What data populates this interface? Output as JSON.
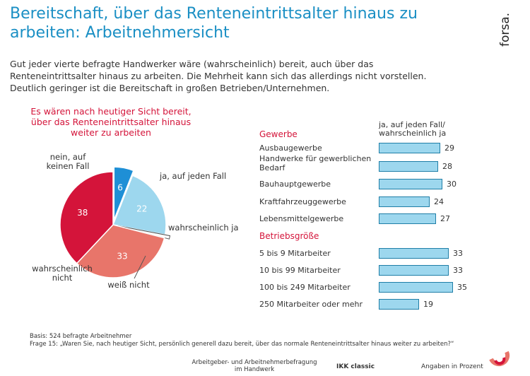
{
  "title": "Bereitschaft, über das Renteneintrittsalter hinaus zu arbeiten: Arbeitnehmersicht",
  "brand": "forsa.",
  "intro": "Gut jeder vierte befragte Handwerker wäre (wahrscheinlich) bereit, auch über das Renteneintrittsalter hinaus zu arbeiten. Die Mehrheit kann sich das allerdings nicht vorstellen. Deutlich geringer ist die Bereitschaft in großen Betrieben/Unternehmen.",
  "colors": {
    "accent_blue": "#1a8fc4",
    "red": "#d4143a",
    "salmon": "#e8756a",
    "light_blue": "#9dd7ee",
    "blue": "#1e8fd6",
    "bar_border": "#1f7ea7"
  },
  "chart_data": [
    {
      "type": "pie",
      "title": "Es wären nach heutiger Sicht bereit, über das Renteneintrittsalter hinaus weiter zu arbeiten",
      "slices": [
        {
          "label": "ja, auf jeden Fall",
          "value": 6,
          "color": "#1e8fd6"
        },
        {
          "label": "wahrscheinlich ja",
          "value": 22,
          "color": "#9dd7ee"
        },
        {
          "label": "weiß nicht",
          "value": 1,
          "color": "#ffffff"
        },
        {
          "label": "wahrscheinlich nicht",
          "value": 33,
          "color": "#e8756a"
        },
        {
          "label": "nein, auf keinen Fall",
          "value": 38,
          "color": "#d4143a"
        }
      ]
    },
    {
      "type": "bar",
      "orientation": "horizontal",
      "column_header": "ja, auf jeden Fall/ wahrscheinlich ja",
      "groups": [
        {
          "name": "Gewerbe",
          "categories": [
            "Ausbaugewerbe",
            "Handwerke für gewerblichen Bedarf",
            "Bauhauptgewerbe",
            "Kraftfahrzeuggewerbe",
            "Lebensmittelgewerbe"
          ],
          "values": [
            29,
            28,
            30,
            24,
            27
          ]
        },
        {
          "name": "Betriebsgröße",
          "categories": [
            "5 bis 9 Mitarbeiter",
            "10 bis 99 Mitarbeiter",
            "100 bis 249 Mitarbeiter",
            "250 Mitarbeiter oder mehr"
          ],
          "values": [
            33,
            33,
            35,
            19
          ]
        }
      ]
    }
  ],
  "footer": {
    "basis": "Basis: 524 befragte Arbeitnehmer",
    "frage": "Frage 15: „Waren Sie, nach heutiger Sicht, persönlich generell dazu bereit, über das normale Renteneintrittsalter hinaus weiter zu arbeiten?“",
    "survey_line1": "Arbeitgeber- und Arbeitnehmerbefragung",
    "survey_line2": "im Handwerk",
    "sponsor": "IKK classic",
    "units": "Angaben in Prozent"
  }
}
